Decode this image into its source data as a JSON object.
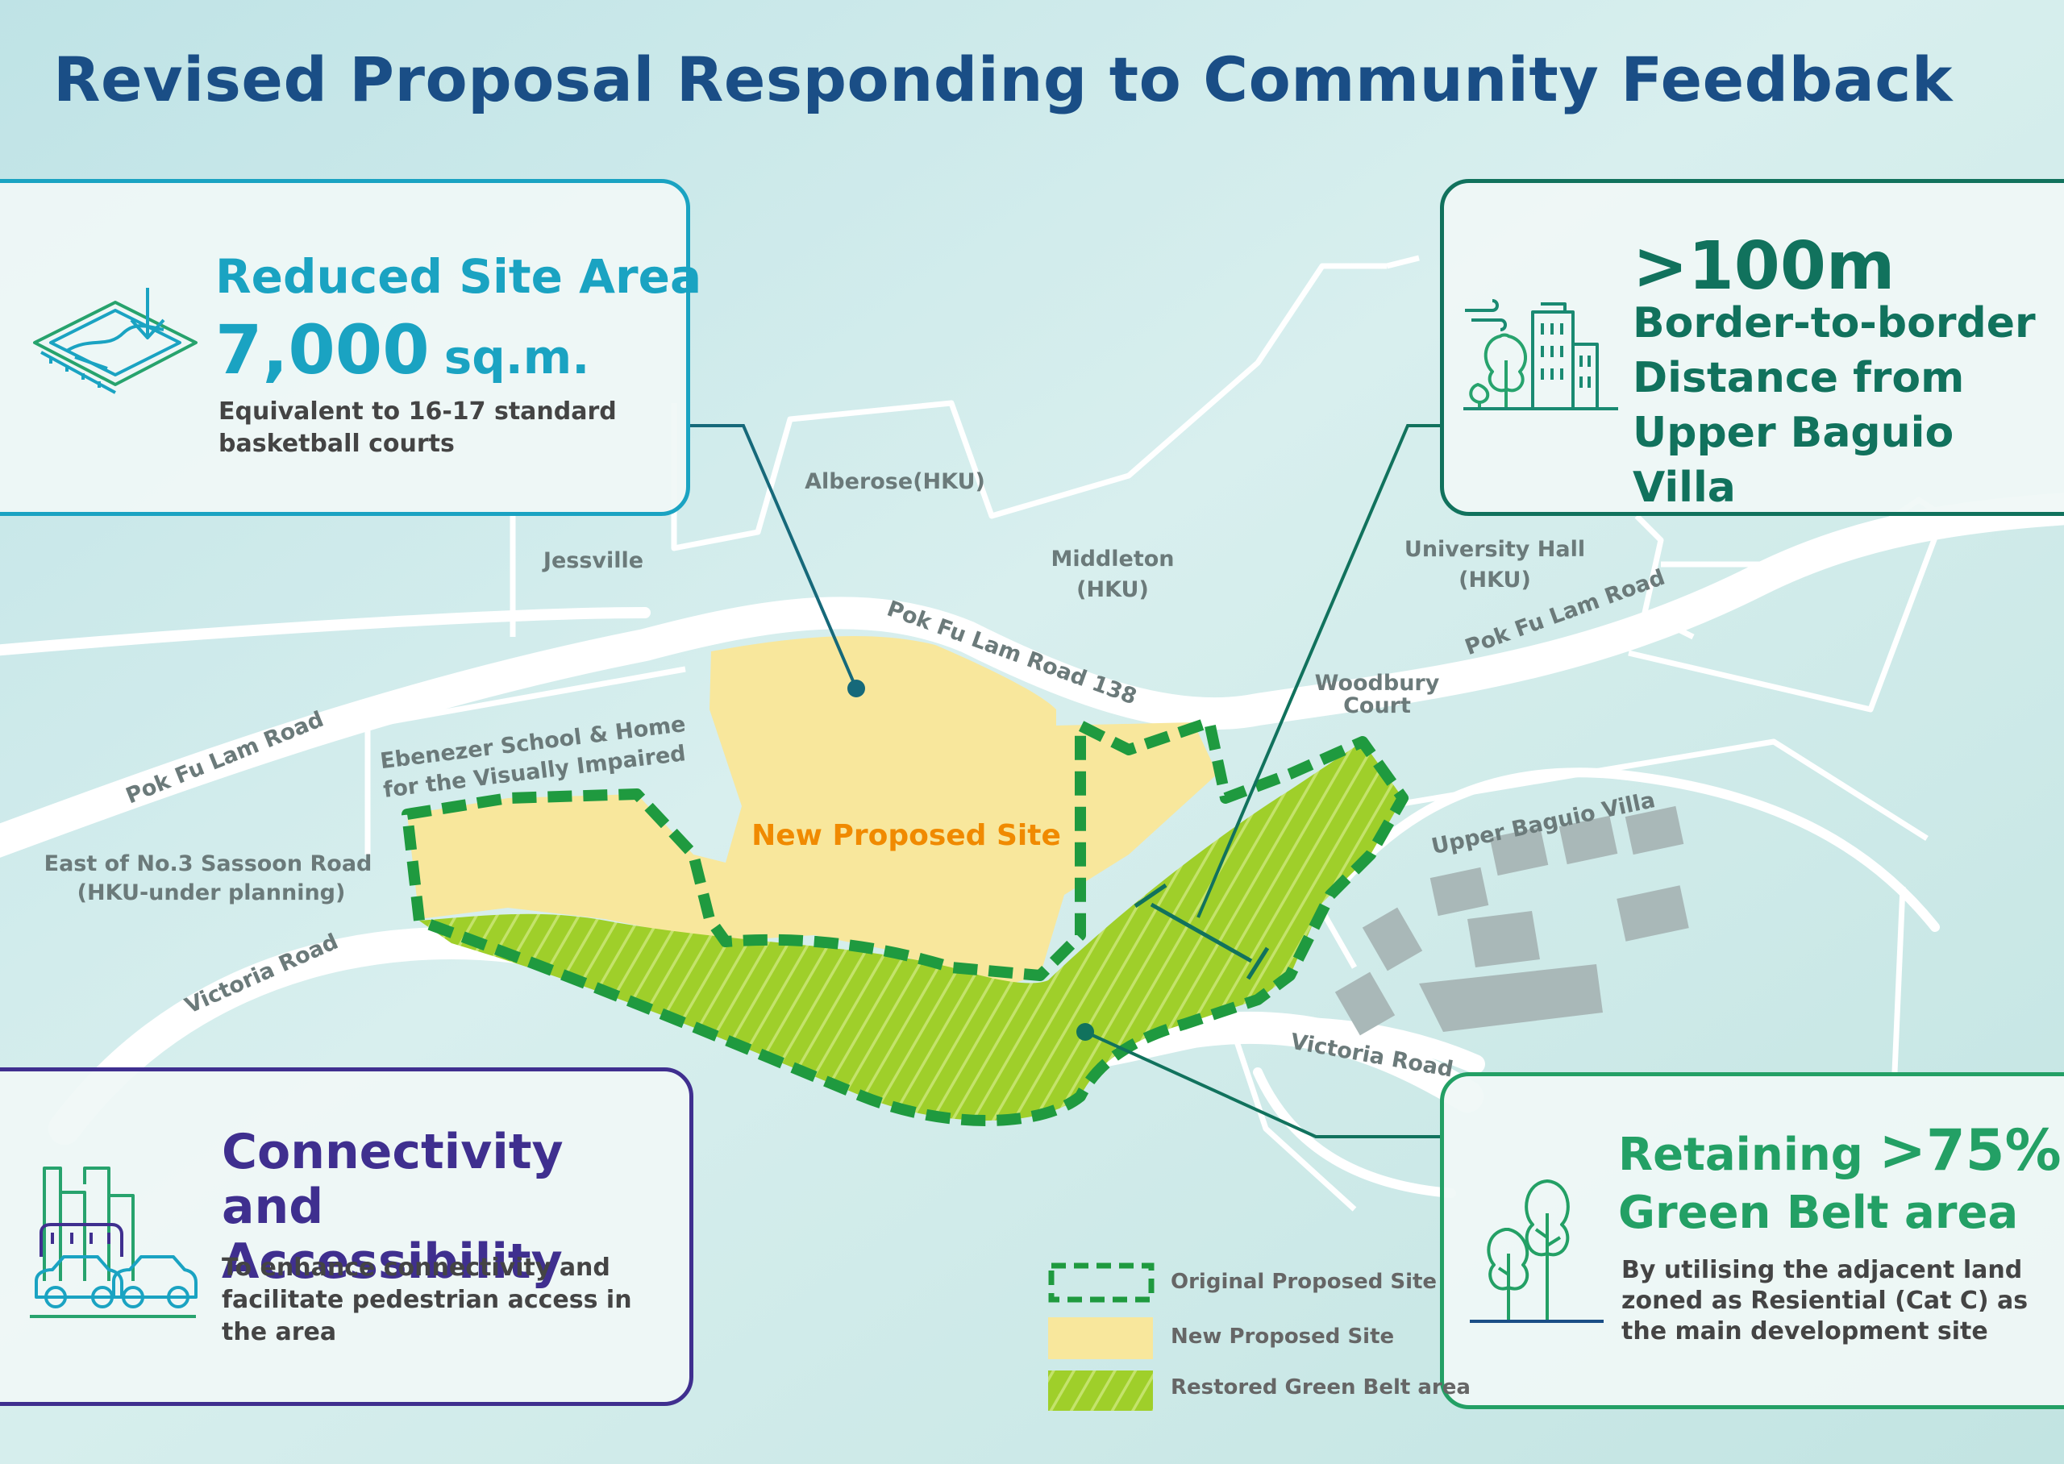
{
  "title": "Revised Proposal Responding to Community Feedback",
  "site_area": {
    "heading": "Reduced Site Area",
    "value": "7,000",
    "unit": "sq.m.",
    "description": "Equivalent to 16-17 standard basketball courts",
    "icon": "land-plot-icon"
  },
  "distance": {
    "value": ">100m",
    "description": "Border-to-border Distance from Upper Baguio Villa",
    "icon": "buildings-trees-icon"
  },
  "connectivity": {
    "heading": "Connectivity and Accessibility",
    "description": "To enhance connectivity and facilitate pedestrian access in the area",
    "icon": "city-vehicles-icon"
  },
  "green_belt": {
    "heading_prefix": "Retaining",
    "heading_value": ">75%",
    "heading_suffix": "Green Belt area",
    "description": "By utilising the adjacent land zoned as Resiential (Cat C) as the main development site",
    "icon": "trees-icon"
  },
  "map": {
    "place_labels": {
      "alberose": "Alberose(HKU)",
      "jessville": "Jessville",
      "middleton_1": "Middleton",
      "middleton_2": "(HKU)",
      "university_hall_1": "University Hall",
      "university_hall_2": "(HKU)",
      "woodbury_1": "Woodbury",
      "woodbury_2": "Court",
      "ebenezer_1": "Ebenezer School & Home",
      "ebenezer_2": "for the Visually Impaired",
      "sassoon_1": "East of No.3 Sassoon Road",
      "sassoon_2": "(HKU-under planning)",
      "upper_baguio": "Upper Baguio Villa",
      "new_site": "New Proposed Site"
    },
    "road_labels": {
      "pfl_138": "Pok Fu Lam Road 138",
      "pfl_left": "Pok Fu Lam Road",
      "pfl_right": "Pok Fu Lam Road",
      "victoria_left": "Victoria Road",
      "victoria_right": "Victoria Road"
    },
    "colors": {
      "background": "#cfe9ea",
      "road": "#ffffff",
      "new_site": "#f8e79c",
      "green_belt": "#9fcf2a",
      "green_belt_hatch": "#c4e36b",
      "original_border": "#1f9a3f",
      "buildings": "#a9b8b8",
      "label": "#6b7a7a",
      "new_site_label": "#f08a00"
    }
  },
  "legend": {
    "items": [
      {
        "label": "Original Proposed Site",
        "swatch": "dashed-green-outline"
      },
      {
        "label": "New Proposed Site",
        "swatch": "yellow-fill"
      },
      {
        "label": "Restored Green Belt area",
        "swatch": "green-hatch"
      }
    ]
  }
}
